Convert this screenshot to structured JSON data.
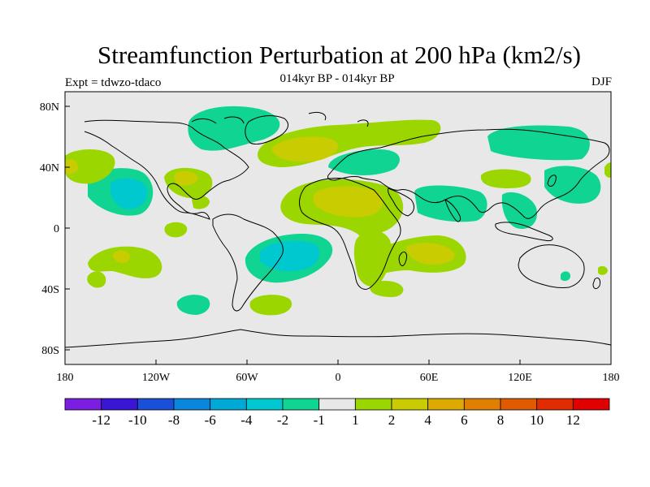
{
  "title": "Streamfunction Perturbation at 200 hPa (km2/s)",
  "subtitle": "014kyr BP - 014kyr BP",
  "left_label": "Expt = tdwzo-tdaco",
  "right_label": "DJF",
  "axes": {
    "x_ticks": [
      "180",
      "120W",
      "60W",
      "0",
      "60E",
      "120E",
      "180"
    ],
    "y_ticks": [
      "80N",
      "40N",
      "0",
      "40S",
      "80S"
    ]
  },
  "colorbar": {
    "labels": [
      "-12",
      "-10",
      "-8",
      "-6",
      "-4",
      "-2",
      "-1",
      "1",
      "2",
      "4",
      "6",
      "8",
      "10",
      "12"
    ],
    "colors": [
      "#7c1ee0",
      "#3a16d4",
      "#1a4fd8",
      "#0a86dc",
      "#00a8d6",
      "#00c8cf",
      "#10d492",
      "#e8e8e8",
      "#9cd600",
      "#c8cc00",
      "#dcaa00",
      "#e08000",
      "#e05a00",
      "#e02c00",
      "#e00000"
    ]
  },
  "colors": {
    "background": "#e8e8e8",
    "neg1": "#10d492",
    "neg2": "#00c8cf",
    "pos1": "#9cd600",
    "pos2": "#c8cc00"
  }
}
